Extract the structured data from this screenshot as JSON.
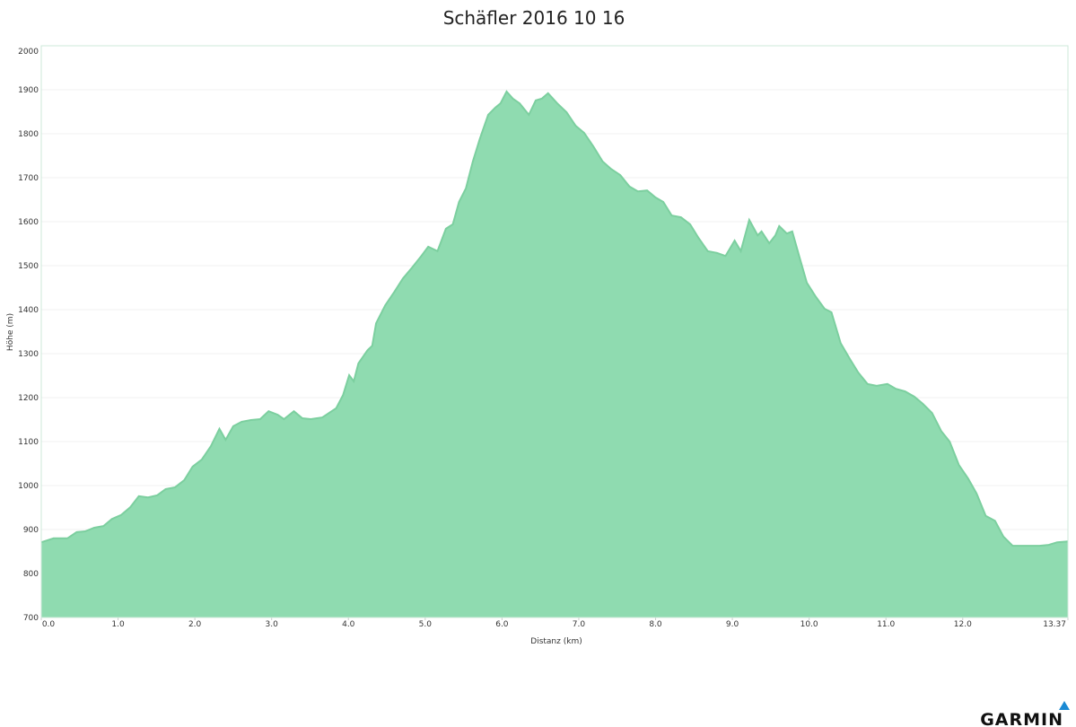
{
  "chart_data": {
    "type": "area",
    "title": "Schäfler 2016 10 16",
    "x_label": "Distanz   (km)",
    "y_label": "Höhe (m)",
    "brand": "GARMIN",
    "color": "#8fdbb0",
    "line_color": "#7ccf9f",
    "grid": true,
    "xlim": [
      0,
      13.37
    ],
    "ylim": [
      700,
      2000
    ],
    "xticks": [
      {
        "value": 0,
        "label": "0.0"
      },
      {
        "value": 1,
        "label": "1.0"
      },
      {
        "value": 2,
        "label": "2.0"
      },
      {
        "value": 3,
        "label": "3.0"
      },
      {
        "value": 4,
        "label": "4.0"
      },
      {
        "value": 5,
        "label": "5.0"
      },
      {
        "value": 6,
        "label": "6.0"
      },
      {
        "value": 7,
        "label": "7.0"
      },
      {
        "value": 8,
        "label": "8.0"
      },
      {
        "value": 9,
        "label": "9.0"
      },
      {
        "value": 10,
        "label": "10.0"
      },
      {
        "value": 11,
        "label": "11.0"
      },
      {
        "value": 12,
        "label": "12.0"
      },
      13.37
    ],
    "yticks": [
      700,
      800,
      900,
      1000,
      1100,
      1200,
      1300,
      1400,
      1500,
      1600,
      1700,
      1800,
      1900,
      2000
    ],
    "x": [
      0,
      0.16,
      0.34,
      0.46,
      0.57,
      0.69,
      0.81,
      0.92,
      1.04,
      1.16,
      1.27,
      1.39,
      1.51,
      1.62,
      1.74,
      1.86,
      1.97,
      2.09,
      2.21,
      2.32,
      2.4,
      2.5,
      2.61,
      2.73,
      2.85,
      2.96,
      3.08,
      3.16,
      3.29,
      3.4,
      3.51,
      3.66,
      3.84,
      3.93,
      4.01,
      4.07,
      4.13,
      4.25,
      4.31,
      4.36,
      4.48,
      4.6,
      4.71,
      4.83,
      4.95,
      5.04,
      5.16,
      5.27,
      5.36,
      5.44,
      5.53,
      5.62,
      5.71,
      5.82,
      5.91,
      5.98,
      6.06,
      6.14,
      6.23,
      6.35,
      6.44,
      6.52,
      6.6,
      6.72,
      6.84,
      6.96,
      7.07,
      7.19,
      7.31,
      7.42,
      7.54,
      7.66,
      7.77,
      7.89,
      8.0,
      8.1,
      8.21,
      8.33,
      8.45,
      8.56,
      8.68,
      8.8,
      8.91,
      9.03,
      9.11,
      9.22,
      9.33,
      9.38,
      9.48,
      9.56,
      9.61,
      9.71,
      9.78,
      9.87,
      9.97,
      10.08,
      10.2,
      10.29,
      10.41,
      10.53,
      10.64,
      10.76,
      10.88,
      11.02,
      11.13,
      11.25,
      11.37,
      11.48,
      11.6,
      11.72,
      11.83,
      11.95,
      12.07,
      12.18,
      12.3,
      12.42,
      12.53,
      12.65,
      12.77,
      12.88,
      13.0,
      13.12,
      13.23,
      13.37
    ],
    "y": [
      871,
      880,
      880,
      894,
      896,
      904,
      908,
      924,
      933,
      951,
      976,
      973,
      978,
      992,
      996,
      1012,
      1043,
      1059,
      1090,
      1129,
      1104,
      1135,
      1145,
      1149,
      1151,
      1169,
      1161,
      1151,
      1169,
      1153,
      1151,
      1155,
      1176,
      1206,
      1251,
      1237,
      1278,
      1308,
      1318,
      1369,
      1410,
      1441,
      1471,
      1496,
      1522,
      1543,
      1533,
      1584,
      1594,
      1645,
      1676,
      1737,
      1788,
      1843,
      1859,
      1869,
      1896,
      1880,
      1869,
      1843,
      1876,
      1880,
      1892,
      1869,
      1849,
      1818,
      1802,
      1771,
      1737,
      1720,
      1706,
      1680,
      1669,
      1671,
      1655,
      1645,
      1614,
      1610,
      1594,
      1563,
      1533,
      1529,
      1522,
      1557,
      1533,
      1604,
      1569,
      1578,
      1551,
      1569,
      1590,
      1573,
      1578,
      1522,
      1461,
      1431,
      1402,
      1394,
      1324,
      1288,
      1257,
      1231,
      1227,
      1231,
      1220,
      1214,
      1202,
      1186,
      1165,
      1124,
      1100,
      1047,
      1016,
      982,
      931,
      920,
      884,
      863,
      863,
      863,
      863,
      865,
      871,
      873
    ]
  }
}
